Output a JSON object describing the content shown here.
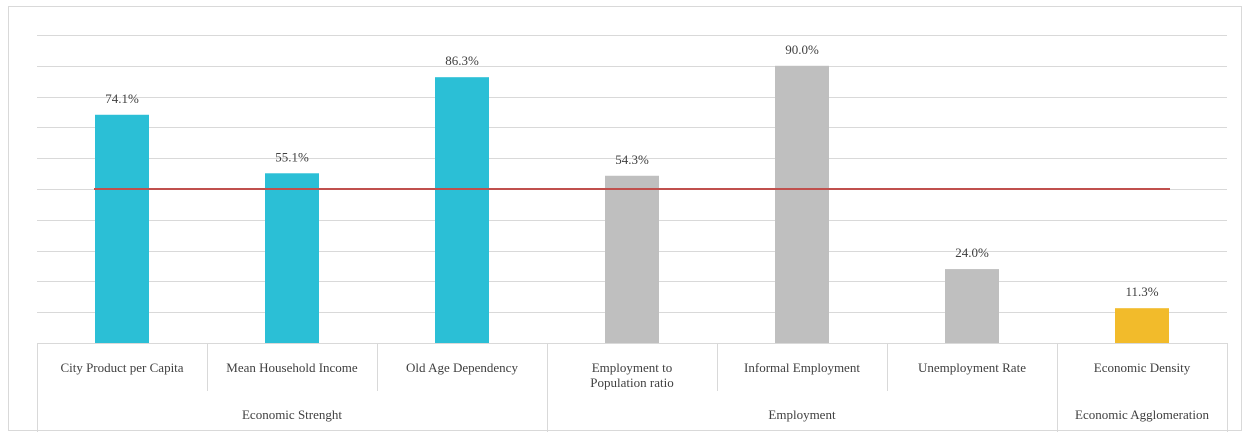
{
  "chart_data": {
    "type": "bar",
    "categories": [
      "City Product per Capita",
      "Mean Household Income",
      "Old  Age Dependency",
      "Employment to Population ratio",
      "Informal Employment",
      "Unemployment Rate",
      "Economic Density"
    ],
    "category_lines": [
      [
        "City Product per Capita"
      ],
      [
        "Mean Household Income"
      ],
      [
        "Old  Age Dependency"
      ],
      [
        "Employment to",
        "Population ratio"
      ],
      [
        "Informal Employment"
      ],
      [
        "Unemployment Rate"
      ],
      [
        "Economic Density"
      ]
    ],
    "values": [
      74.1,
      55.1,
      86.3,
      54.3,
      90.0,
      24.0,
      11.3
    ],
    "data_labels": [
      "74.1%",
      "55.1%",
      "86.3%",
      "54.3%",
      "90.0%",
      "24.0%",
      "11.3%"
    ],
    "bar_colors": [
      "#2bbfd6",
      "#2bbfd6",
      "#2bbfd6",
      "#bfbfbf",
      "#bfbfbf",
      "#bfbfbf",
      "#f2bb2b"
    ],
    "groups": [
      {
        "label": "Economic Strenght",
        "start": 0,
        "end": 2
      },
      {
        "label": "Employment",
        "start": 3,
        "end": 5
      },
      {
        "label": "Economic Agglomeration",
        "start": 6,
        "end": 6
      }
    ],
    "reference_line": {
      "value": 50,
      "color": "#c0504d"
    },
    "ylim": [
      0,
      100
    ],
    "gridlines": [
      10,
      20,
      30,
      40,
      50,
      60,
      70,
      80,
      90,
      100
    ],
    "grid": true,
    "legend": "none",
    "title": "",
    "xlabel": "",
    "ylabel": ""
  }
}
